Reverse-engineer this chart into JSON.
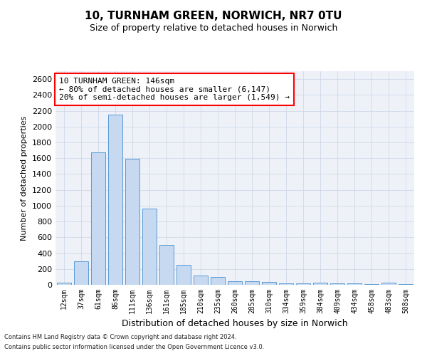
{
  "title_line1": "10, TURNHAM GREEN, NORWICH, NR7 0TU",
  "title_line2": "Size of property relative to detached houses in Norwich",
  "xlabel": "Distribution of detached houses by size in Norwich",
  "ylabel": "Number of detached properties",
  "footer_line1": "Contains HM Land Registry data © Crown copyright and database right 2024.",
  "footer_line2": "Contains public sector information licensed under the Open Government Licence v3.0.",
  "annotation_title": "10 TURNHAM GREEN: 146sqm",
  "annotation_line2": "← 80% of detached houses are smaller (6,147)",
  "annotation_line3": "20% of semi-detached houses are larger (1,549) →",
  "bar_labels": [
    "12sqm",
    "37sqm",
    "61sqm",
    "86sqm",
    "111sqm",
    "136sqm",
    "161sqm",
    "185sqm",
    "210sqm",
    "235sqm",
    "260sqm",
    "285sqm",
    "310sqm",
    "334sqm",
    "359sqm",
    "384sqm",
    "409sqm",
    "434sqm",
    "458sqm",
    "483sqm",
    "508sqm"
  ],
  "bar_values": [
    25,
    300,
    1670,
    2150,
    1595,
    960,
    500,
    248,
    120,
    100,
    48,
    45,
    35,
    20,
    18,
    25,
    15,
    20,
    5,
    30,
    5
  ],
  "bar_color": "#c6d9f0",
  "bar_edge_color": "#5b9bd5",
  "ylim": [
    0,
    2700
  ],
  "yticks": [
    0,
    200,
    400,
    600,
    800,
    1000,
    1200,
    1400,
    1600,
    1800,
    2000,
    2200,
    2400,
    2600
  ],
  "grid_color": "#d0d8e8",
  "bg_color": "#eef2f8",
  "title_fontsize": 11,
  "subtitle_fontsize": 9,
  "ylabel_fontsize": 8,
  "xlabel_fontsize": 9,
  "tick_fontsize": 7,
  "ytick_fontsize": 8,
  "footer_fontsize": 6,
  "annot_fontsize": 8
}
